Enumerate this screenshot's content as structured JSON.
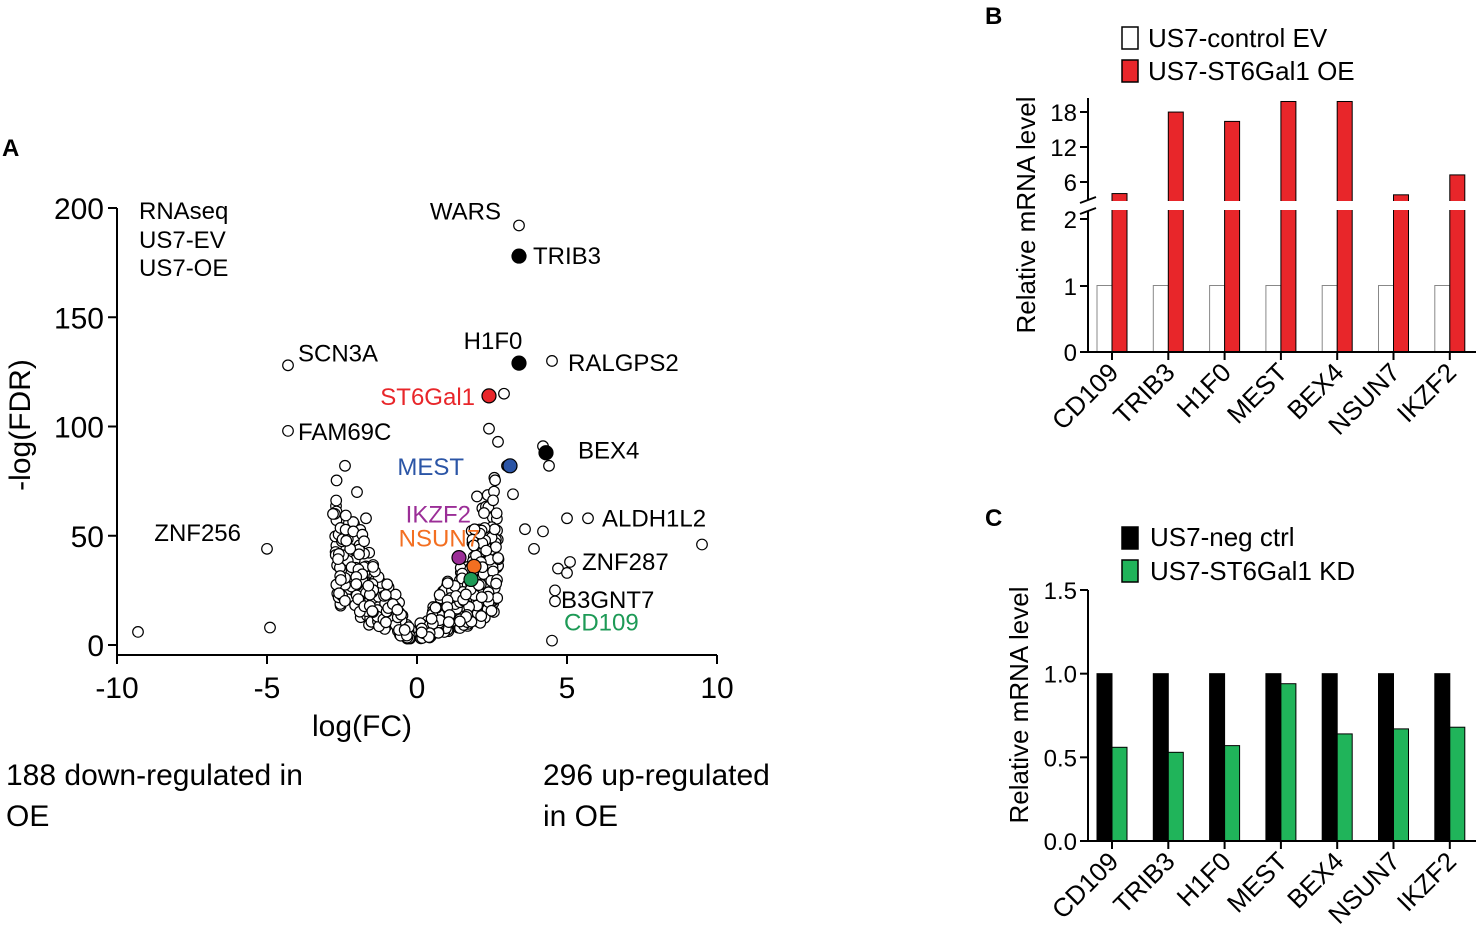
{
  "panels": {
    "a": "A",
    "b": "B",
    "c": "C"
  },
  "colors": {
    "red": "#e8262a",
    "blue": "#2b55a6",
    "purple": "#9b2e97",
    "orange": "#f36f21",
    "green": "#1d9a56",
    "bar_red": "#e8262a",
    "bar_green": "#20b45a",
    "bar_black": "#000000",
    "bar_white": "#ffffff"
  },
  "chart_data": [
    {
      "id": "A",
      "type": "scatter",
      "title": "",
      "xlabel": "log(FC)",
      "ylabel": "-log(FDR)",
      "xlim": [
        -10,
        10
      ],
      "ylim": [
        0,
        200
      ],
      "xticks": [
        "-10",
        "-5",
        "0",
        "5",
        "10"
      ],
      "yticks": [
        "0",
        "50",
        "100",
        "150",
        "200"
      ],
      "legend_lines": [
        "RNAseq",
        "US7-EV",
        "US7-OE"
      ],
      "bottom_notes": {
        "left": [
          "188 down-regulated in",
          "OE"
        ],
        "right": [
          "296 up-regulated",
          "in OE"
        ]
      },
      "labeled_points": [
        {
          "label": "WARS",
          "x": 3.4,
          "y": 192,
          "fill": "white",
          "label_color": "#000000",
          "side": "left"
        },
        {
          "label": "TRIB3",
          "x": 3.4,
          "y": 178,
          "fill": "black",
          "label_color": "#000000",
          "side": "right"
        },
        {
          "label": "H1F0",
          "x": 3.4,
          "y": 129,
          "fill": "black",
          "label_color": "#000000",
          "side": "above"
        },
        {
          "label": "RALGPS2",
          "x": 4.5,
          "y": 130,
          "fill": "white",
          "label_color": "#000000",
          "side": "right"
        },
        {
          "label": "SCN3A",
          "x": -4.3,
          "y": 128,
          "fill": "white",
          "label_color": "#000000",
          "side": "right"
        },
        {
          "label": "ST6Gal1",
          "x": 2.4,
          "y": 114,
          "fill": "red",
          "label_color": "red",
          "side": "left"
        },
        {
          "label": "FAM69C",
          "x": -4.3,
          "y": 98,
          "fill": "white",
          "label_color": "#000000",
          "side": "right"
        },
        {
          "label": "MEST",
          "x": 3.1,
          "y": 82,
          "fill": "blue",
          "label_color": "blue",
          "side": "left"
        },
        {
          "label": "BEX4",
          "x": 4.3,
          "y": 88,
          "fill": "black",
          "label_color": "#000000",
          "side": "right"
        },
        {
          "label": "IKZF2",
          "x": 1.4,
          "y": 40,
          "fill": "purple",
          "label_color": "purple",
          "side": "left"
        },
        {
          "label": "NSUN7",
          "x": 1.9,
          "y": 36,
          "fill": "orange",
          "label_color": "orange",
          "side": "left"
        },
        {
          "label": "ALDH1L2",
          "x": 5.7,
          "y": 58,
          "fill": "white",
          "label_color": "#000000",
          "side": "right"
        },
        {
          "label": "ZNF256",
          "x": -5.0,
          "y": 44,
          "fill": "white",
          "label_color": "#000000",
          "side": "left"
        },
        {
          "label": "ZNF287",
          "x": 5.1,
          "y": 38,
          "fill": "white",
          "label_color": "#000000",
          "side": "right"
        },
        {
          "label": "B3GNT7",
          "x": 5.0,
          "y": 33,
          "fill": "white",
          "label_color": "#000000",
          "side": "below"
        },
        {
          "label": "CD109",
          "x": 1.8,
          "y": 30,
          "fill": "green",
          "label_color": "green",
          "side": "far"
        }
      ],
      "extra_points": [
        [
          -9.3,
          6
        ],
        [
          -4.9,
          8
        ],
        [
          2.9,
          115
        ],
        [
          2.4,
          99
        ],
        [
          2.7,
          93
        ],
        [
          3.0,
          82
        ],
        [
          4.2,
          91
        ],
        [
          4.4,
          82
        ],
        [
          -2.4,
          82
        ],
        [
          -2.0,
          70
        ],
        [
          2.0,
          68
        ],
        [
          3.2,
          69
        ],
        [
          5.0,
          58
        ],
        [
          9.5,
          46
        ],
        [
          4.7,
          35
        ],
        [
          4.6,
          25
        ],
        [
          4.6,
          20
        ],
        [
          4.5,
          2
        ],
        [
          -2.8,
          60
        ],
        [
          -1.7,
          58
        ],
        [
          3.6,
          53
        ],
        [
          4.2,
          52
        ],
        [
          3.9,
          44
        ]
      ],
      "cloud_point_count": 480,
      "up_regulated": 296,
      "down_regulated": 188
    },
    {
      "id": "B",
      "type": "bar",
      "title": "",
      "xlabel": "",
      "ylabel": "Relative mRNA level",
      "categories": [
        "CD109",
        "TRIB3",
        "H1F0",
        "MEST",
        "BEX4",
        "NSUN7",
        "IKZF2"
      ],
      "series": [
        {
          "name": "US7-control EV",
          "color_key": "bar_white",
          "values": [
            1,
            1,
            1,
            1,
            1,
            1,
            1
          ]
        },
        {
          "name": "US7-ST6Gal1 OE",
          "color_key": "bar_red",
          "values": [
            4.8,
            17.9,
            16.4,
            19.6,
            19.6,
            4.6,
            7.8
          ]
        }
      ],
      "axis_break": {
        "lower_range": [
          0,
          2
        ],
        "upper_range": [
          2,
          20
        ]
      },
      "yticks": [
        "0",
        "1",
        "2",
        "6",
        "12",
        "18"
      ]
    },
    {
      "id": "C",
      "type": "bar",
      "title": "",
      "xlabel": "",
      "ylabel": "Relative mRNA level",
      "categories": [
        "CD109",
        "TRIB3",
        "H1F0",
        "MEST",
        "BEX4",
        "NSUN7",
        "IKZF2"
      ],
      "series": [
        {
          "name": "US7-neg ctrl",
          "color_key": "bar_black",
          "values": [
            1,
            1,
            1,
            1,
            1,
            1,
            1
          ]
        },
        {
          "name": "US7-ST6Gal1 KD",
          "color_key": "bar_green",
          "values": [
            0.56,
            0.53,
            0.57,
            0.94,
            0.64,
            0.67,
            0.68
          ]
        }
      ],
      "ylim": [
        0,
        1.5
      ],
      "yticks": [
        "0.0",
        "0.5",
        "1.0",
        "1.5"
      ]
    }
  ]
}
